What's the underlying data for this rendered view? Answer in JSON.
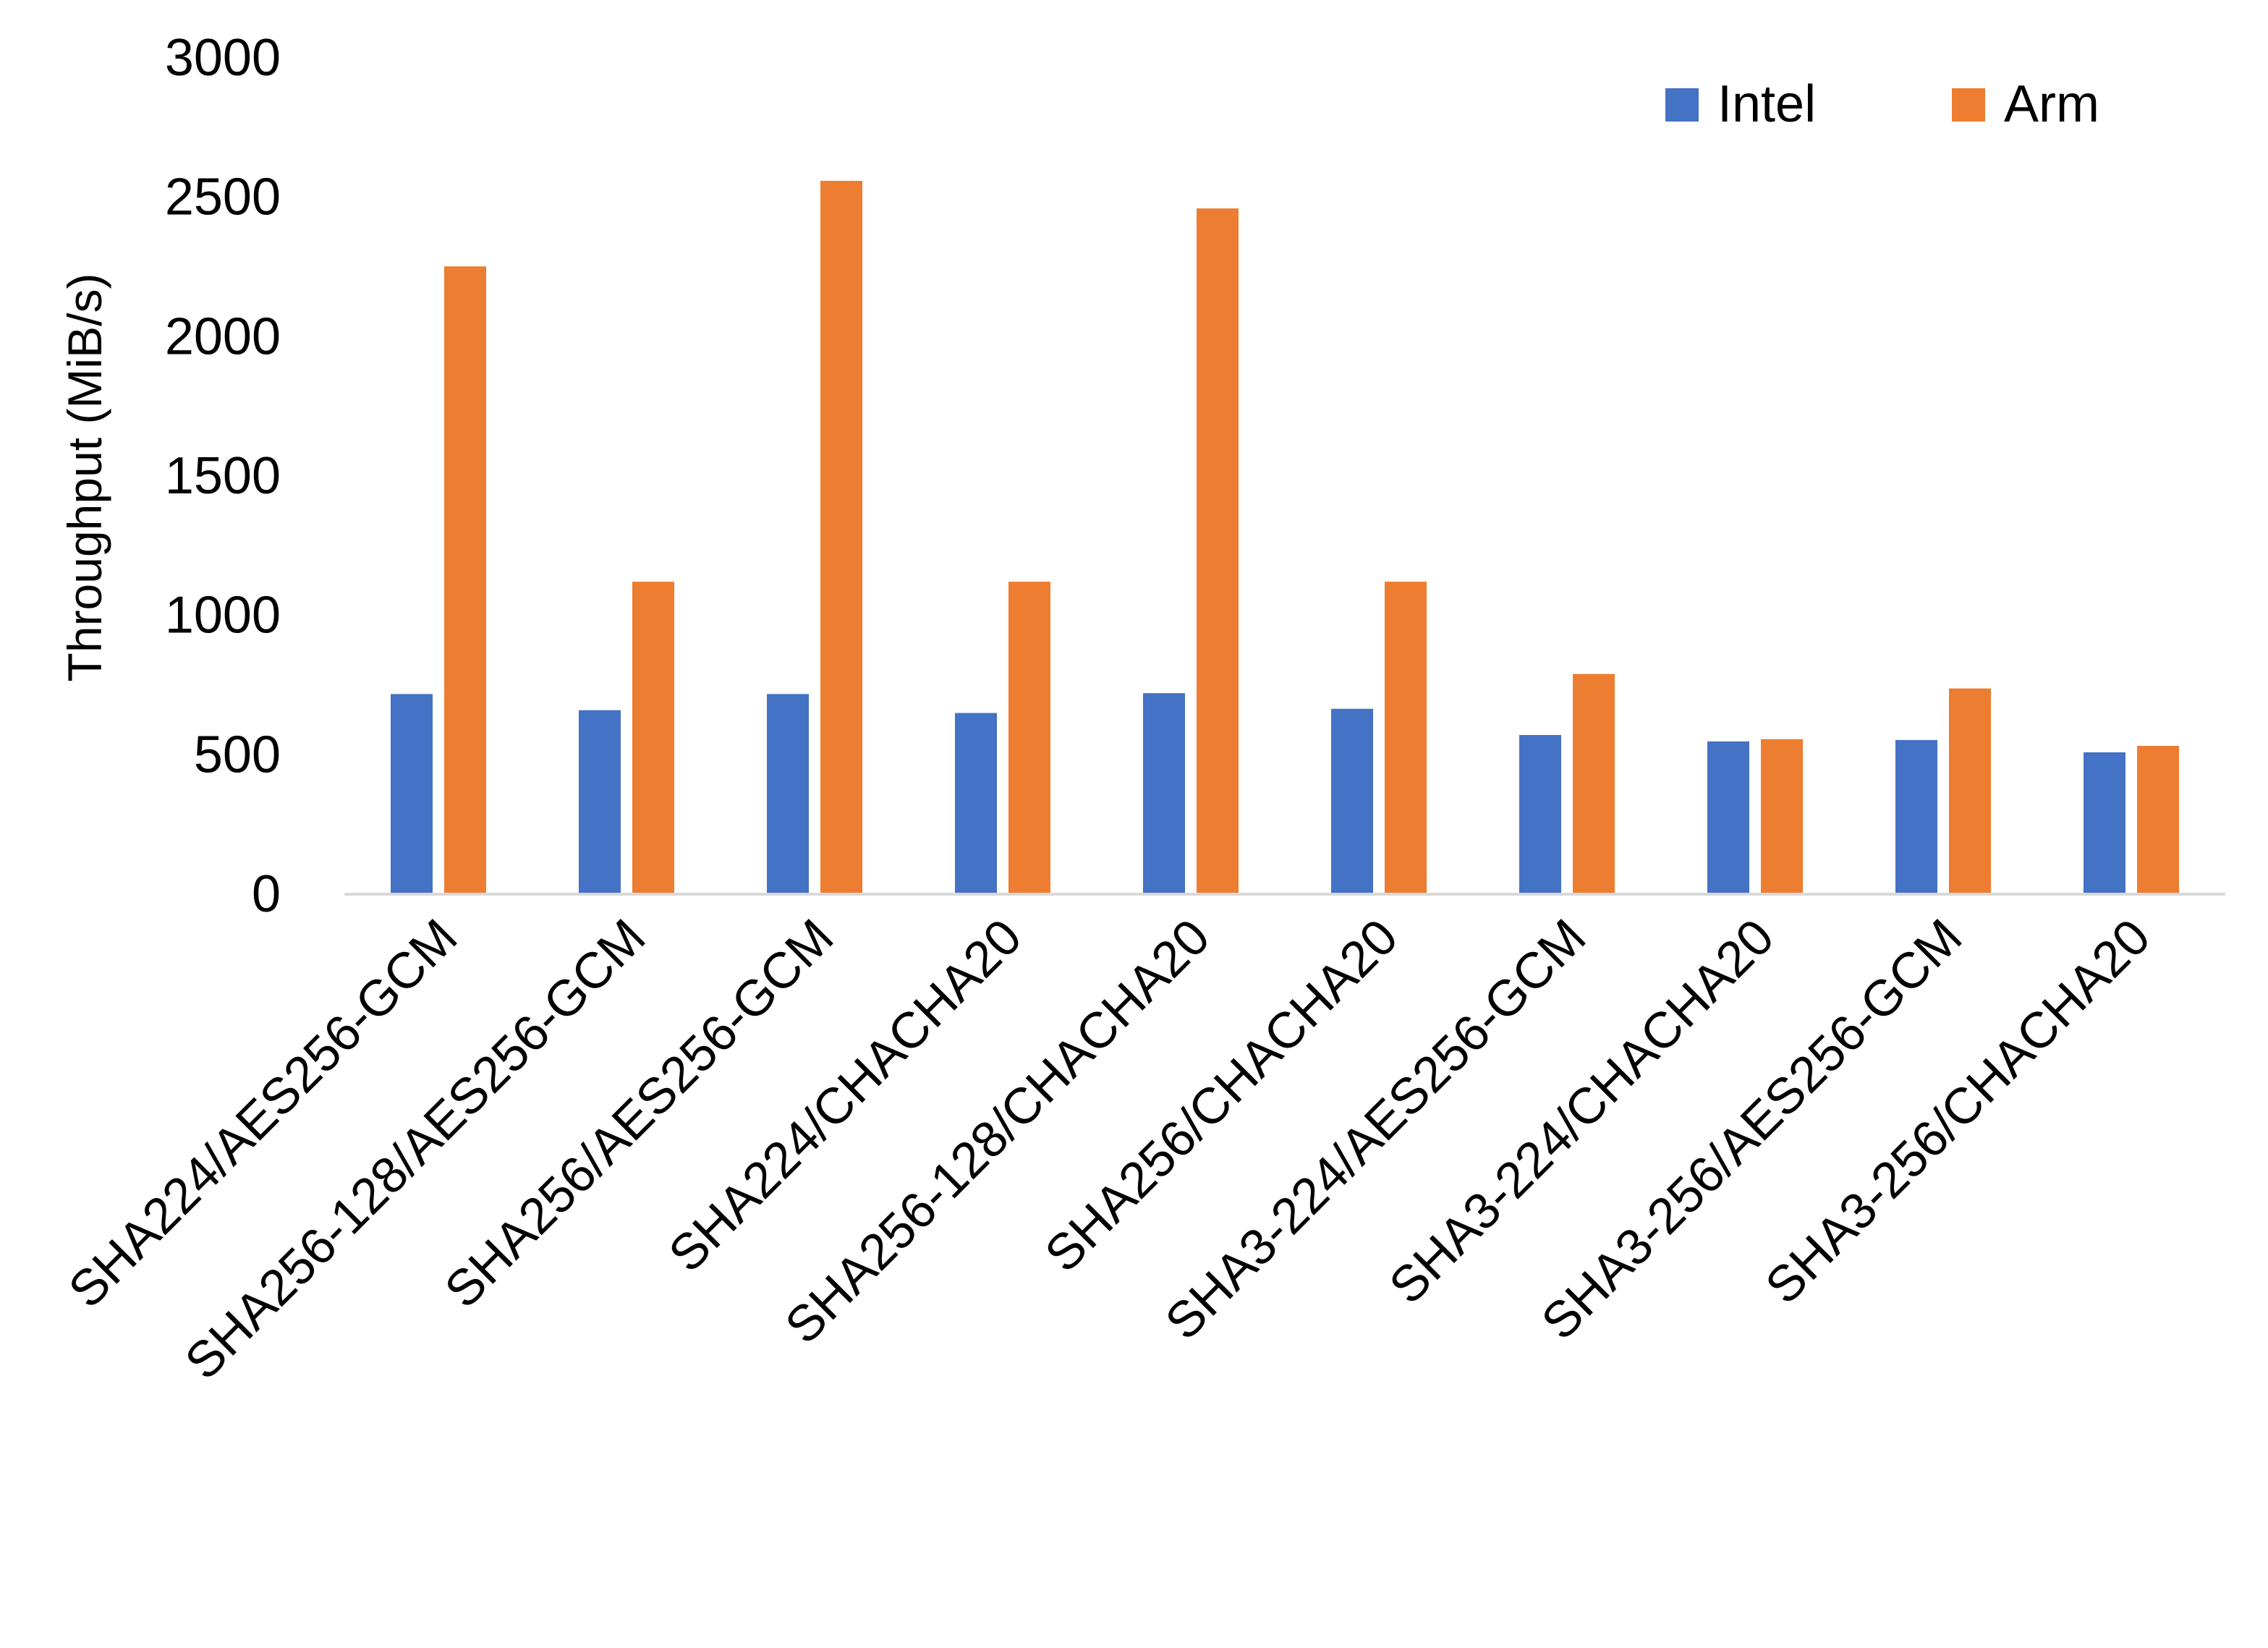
{
  "chart_data": {
    "type": "bar",
    "title": "",
    "xlabel": "",
    "ylabel": "Throughput (MiB/s)",
    "ylim": [
      0,
      3000
    ],
    "yticks": [
      "0",
      "500",
      "1000",
      "1500",
      "2000",
      "2500",
      "3000"
    ],
    "grid": false,
    "legend_position": "top-right",
    "categories": [
      "SHA224/AES256-GCM",
      "SHA256-128/AES256-GCM",
      "SHA256/AES256-GCM",
      "SHA224/CHACHA20",
      "SHA256-128/CHACHA20",
      "SHA256/CHACHA20",
      "SHA3-224/AES256-GCM",
      "SHA3-224/CHACHA20",
      "SHA3-256/AES256-GCM",
      "SHA3-256/CHACHA20"
    ],
    "series": [
      {
        "name": "Intel",
        "color": "#4472C4",
        "values": [
          718,
          660,
          718,
          650,
          721,
          665,
          571,
          548,
          553,
          509
        ]
      },
      {
        "name": "Arm",
        "color": "#ED7D31",
        "values": [
          2252,
          1121,
          2559,
          1121,
          2460,
          1121,
          790,
          556,
          738,
          532
        ]
      }
    ]
  }
}
